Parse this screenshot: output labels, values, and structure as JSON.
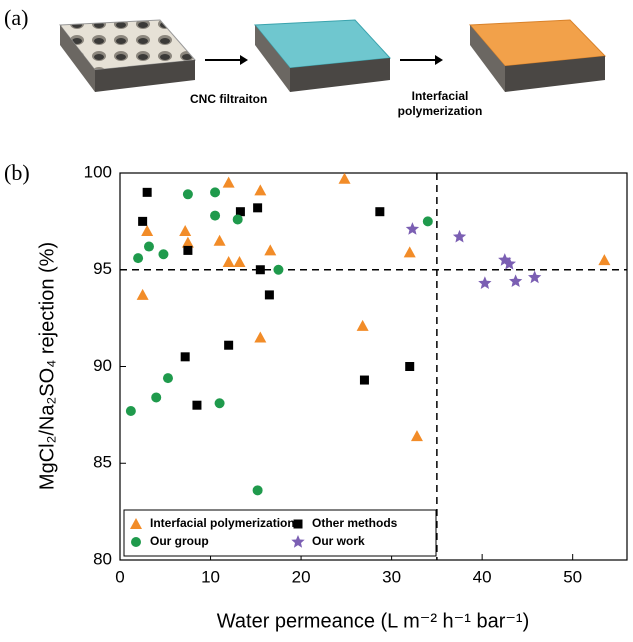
{
  "panel_a": {
    "label": "(a)",
    "step_1": "CNC filtraiton",
    "step_2": [
      "Interfacial",
      "polymerization"
    ]
  },
  "chart_data": {
    "type": "scatter",
    "panel_label": "(b)",
    "x_label": "Water permeance (L m⁻² h⁻¹ bar⁻¹)",
    "y_label": "MgCl₂/Na₂SO₄ rejection (%)",
    "xlim": [
      0,
      56
    ],
    "ylim": [
      80,
      100
    ],
    "xticks": [
      0,
      10,
      20,
      30,
      40,
      50
    ],
    "yticks": [
      80,
      85,
      90,
      95,
      100
    ],
    "reference_lines": {
      "x": 35,
      "y": 95
    },
    "legend": "lower left",
    "series": [
      {
        "name": "Interfacial polymerization",
        "color": "#f28c28",
        "marker": "triangle",
        "x": [
          2.5,
          3,
          7.2,
          7.5,
          11,
          12,
          12,
          13.2,
          15.5,
          15.5,
          16.6,
          24.8,
          26.8,
          32,
          32.8,
          53.5
        ],
        "values": [
          93.7,
          97,
          97,
          96.4,
          96.5,
          99.5,
          95.4,
          95.4,
          99.1,
          91.5,
          96,
          99.7,
          92.1,
          95.9,
          86.4,
          95.5
        ]
      },
      {
        "name": "Other methods",
        "color": "#000000",
        "marker": "square",
        "x": [
          2.5,
          3,
          7.5,
          7.2,
          8.5,
          12,
          13.3,
          15.2,
          15.5,
          16.5,
          27,
          28.7,
          32
        ],
        "values": [
          97.5,
          99,
          96,
          90.5,
          88,
          91.1,
          98,
          98.2,
          95,
          93.7,
          89.3,
          98,
          90
        ]
      },
      {
        "name": "Our group",
        "color": "#1f9a4c",
        "marker": "circle",
        "x": [
          1.2,
          2,
          3.2,
          4,
          4.8,
          5.3,
          7.5,
          10.5,
          10.5,
          11,
          13,
          15.2,
          17.5,
          34
        ],
        "values": [
          87.7,
          95.6,
          96.2,
          88.4,
          95.8,
          89.4,
          98.9,
          99,
          97.8,
          88.1,
          97.6,
          83.6,
          95,
          97.5
        ]
      },
      {
        "name": "Our work",
        "color": "#7b5fb3",
        "marker": "star",
        "x": [
          32.3,
          37.5,
          40.3,
          42.5,
          43,
          43.7,
          45.8
        ],
        "values": [
          97.1,
          96.7,
          94.3,
          95.5,
          95.3,
          94.4,
          94.6
        ]
      }
    ]
  }
}
